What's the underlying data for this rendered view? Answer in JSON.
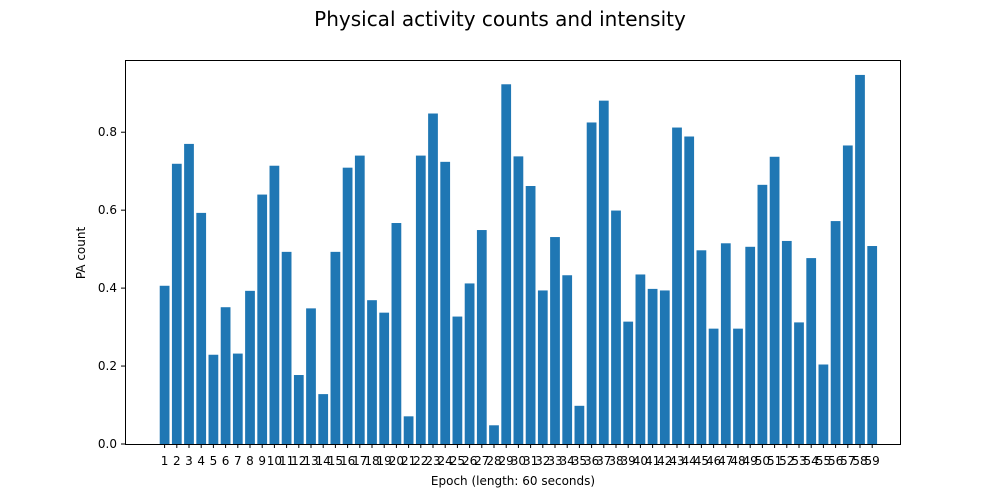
{
  "chart_data": {
    "type": "bar",
    "title": "Physical activity counts and intensity",
    "xlabel": "Epoch (length: 60 seconds)",
    "ylabel": "PA count",
    "categories": [
      "1",
      "2",
      "3",
      "4",
      "5",
      "6",
      "7",
      "8",
      "9",
      "10",
      "11",
      "12",
      "13",
      "14",
      "15",
      "16",
      "17",
      "18",
      "19",
      "20",
      "21",
      "22",
      "23",
      "24",
      "25",
      "26",
      "27",
      "28",
      "29",
      "30",
      "31",
      "32",
      "33",
      "34",
      "35",
      "36",
      "37",
      "38",
      "39",
      "40",
      "41",
      "42",
      "43",
      "44",
      "45",
      "46",
      "47",
      "48",
      "49",
      "50",
      "51",
      "52",
      "53",
      "54",
      "55",
      "56",
      "57",
      "58",
      "59"
    ],
    "values": [
      0.406,
      0.719,
      0.77,
      0.593,
      0.229,
      0.351,
      0.232,
      0.393,
      0.64,
      0.714,
      0.493,
      0.177,
      0.348,
      0.128,
      0.493,
      0.709,
      0.74,
      0.369,
      0.337,
      0.567,
      0.071,
      0.74,
      0.848,
      0.724,
      0.327,
      0.412,
      0.549,
      0.048,
      0.923,
      0.738,
      0.662,
      0.394,
      0.531,
      0.433,
      0.098,
      0.825,
      0.881,
      0.599,
      0.314,
      0.435,
      0.398,
      0.394,
      0.812,
      0.789,
      0.497,
      0.296,
      0.515,
      0.296,
      0.506,
      0.665,
      0.737,
      0.521,
      0.312,
      0.477,
      0.204,
      0.572,
      0.766,
      0.947,
      0.508
    ],
    "ylim": [
      0,
      0.9853
    ],
    "yticks": [
      "0.0",
      "0.2",
      "0.4",
      "0.6",
      "0.8"
    ],
    "bar_color": "#1f77b4",
    "grid": false
  }
}
